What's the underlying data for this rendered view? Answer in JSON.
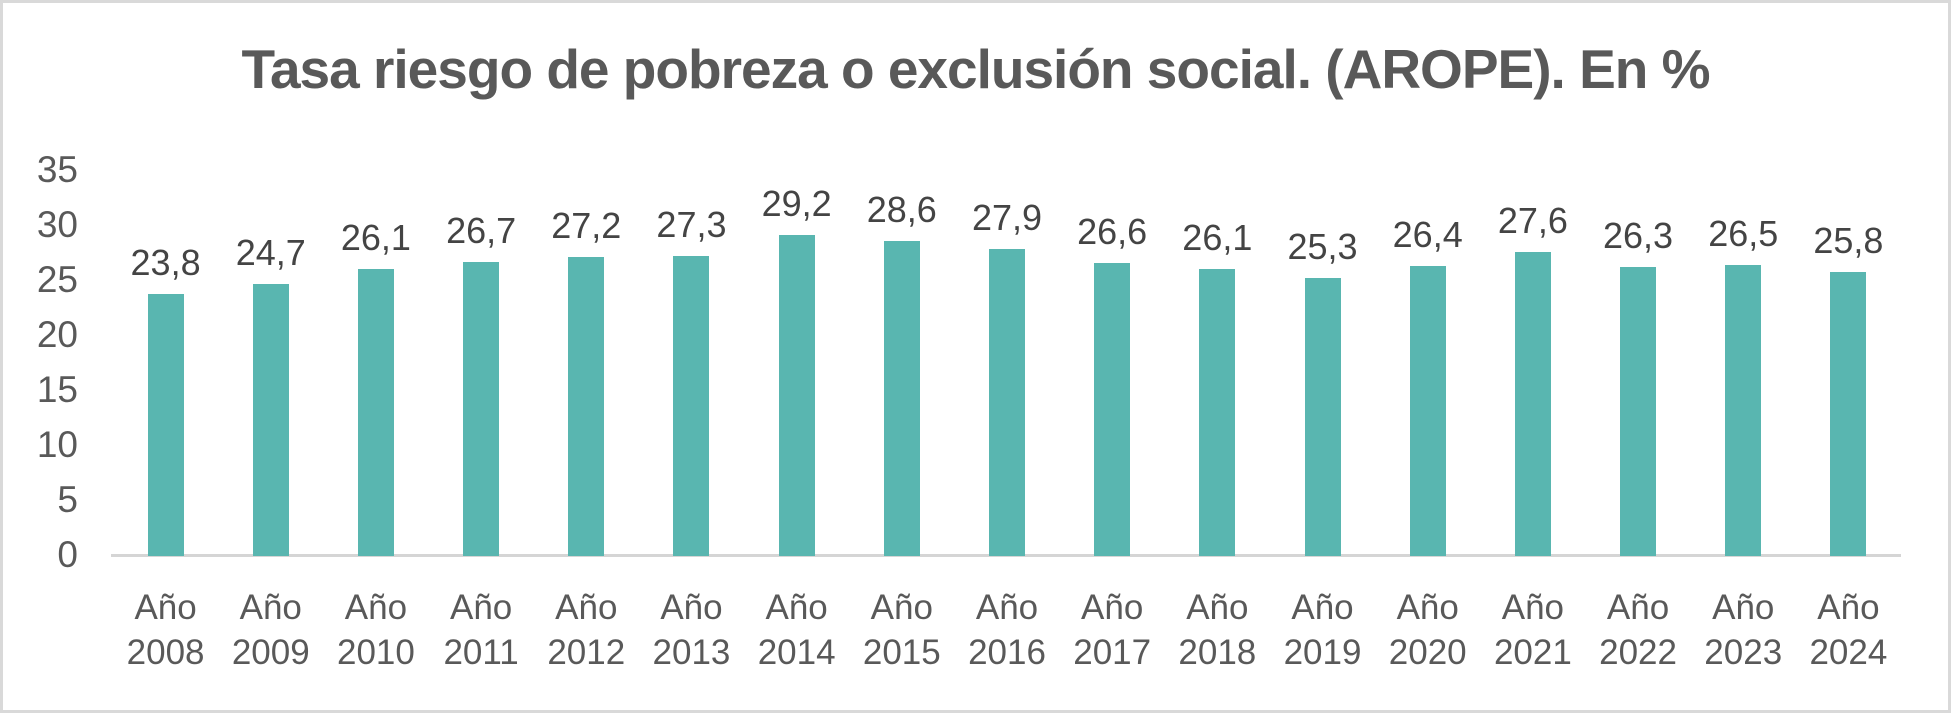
{
  "chart_data": {
    "type": "bar",
    "title": "Tasa riesgo de pobreza o exclusión social. (AROPE). En %",
    "categories": [
      "Año 2008",
      "Año 2009",
      "Año 2010",
      "Año 2011",
      "Año 2012",
      "Año 2013",
      "Año 2014",
      "Año 2015",
      "Año 2016",
      "Año 2017",
      "Año 2018",
      "Año 2019",
      "Año 2020",
      "Año 2021",
      "Año 2022",
      "Año 2023",
      "Año 2024"
    ],
    "values": [
      23.8,
      24.7,
      26.1,
      26.7,
      27.2,
      27.3,
      29.2,
      28.6,
      27.9,
      26.6,
      26.1,
      25.3,
      26.4,
      27.6,
      26.3,
      26.5,
      25.8
    ],
    "value_labels": [
      "23,8",
      "24,7",
      "26,1",
      "26,7",
      "27,2",
      "27,3",
      "29,2",
      "28,6",
      "27,9",
      "26,6",
      "26,1",
      "25,3",
      "26,4",
      "27,6",
      "26,3",
      "26,5",
      "25,8"
    ],
    "xlabel": "",
    "ylabel": "",
    "ylim": [
      0,
      35
    ],
    "yticks": [
      0,
      5,
      10,
      15,
      20,
      25,
      30,
      35
    ],
    "grid": false,
    "legend": "none",
    "bar_color": "#59b6b0",
    "axis_line_color": "#d5d5d5",
    "axis_text_color": "#595959",
    "data_label_color": "#444444",
    "title_color": "#595959"
  }
}
